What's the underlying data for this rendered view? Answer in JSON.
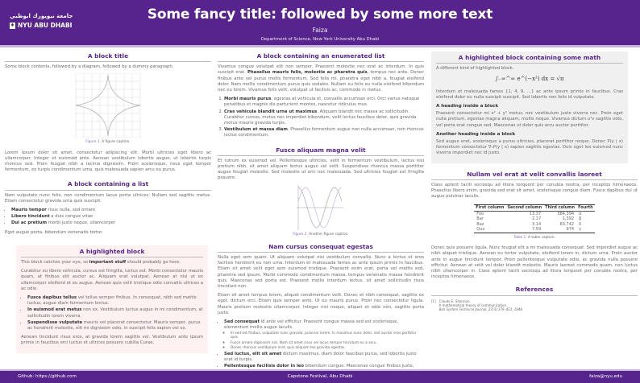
{
  "header": {
    "logo_arabic": "جامعة نيويورك ابوظبي",
    "logo_text": "NYU ABU DHABI",
    "title": "Some fancy title: followed by some more text",
    "author": "Faiza",
    "affiliation": "Department of Science, New York University Abu Dhabi"
  },
  "col1": {
    "block1": {
      "title": "A block title",
      "intro": "Some block contents, followed by a diagram, followed by a dummy paragraph.",
      "caption_label": "Figure 1.",
      "caption": "A figure caption.",
      "para": "Lorem ipsum dolor sit amet, consectetur adipiscing elit. Morbi ultricies eget libero ac ullamcorper. Integer et euismod ante. Aenean vestibulum lobortis augue, ut lobortis turpis rhoncus sed. Proin feugiat nibh a lacinia dignissim. Proin scelerisque, risus eget tempor fermentum, ex turpis condimentum urna, quis malesuada sapien arcu eu purus."
    },
    "block2": {
      "title": "A block containing a list",
      "intro": "Nam vulputate nunc felis, non condimentum lacus porta ultrices. Nullam sed sagittis metus. Etiam consectetur gravida urna quis suscipit.",
      "items": [
        {
          "bold": "Mauris tempor",
          "text": " risus nulla, sed ornare"
        },
        {
          "bold": "Libero tincidunt",
          "text": " a duis congue vitae"
        },
        {
          "bold": "Dui ac pretium",
          "text": " morbi justo neque, ullamcorper"
        }
      ],
      "outro": "Eget augue porta, bibendum venenatis tortor."
    },
    "block3": {
      "title": "A highlighted block",
      "p1_pre": "This block catches your eye, so ",
      "p1_bold": "important stuff",
      "p1_post": " should probably go here.",
      "p2": "Curabitur eu libero vehicula, cursus est fringilla, luctus est. Morbi consectetur mauris quam, at finibus elit auctor ac. Aliquam erat volutpat. Aenean at nisl ut ex ullamcorper eleifend et eu augue. Aenean quis velit tristique odio convallis ultrices a ac odio.",
      "items": [
        {
          "bold": "Fusce dapibus tellus",
          "text": " vel tellus semper finibus. In consequat, nibh sed mattis luctus, augue diam fermentum lectus."
        },
        {
          "bold": "In euismod erat metus",
          "text": " non ex. Vestibulum luctus augue in mi condimentum, at sollicitudin lorem viverra."
        },
        {
          "bold": "Suspendisse vulputate",
          "text": " mauris vel placerat consectetur. Mauris semper, purus ac hendrerit molestie, elit mi dignissim odio, in suscipit felis sapien vel ex."
        }
      ],
      "p3": "Aenean tincidunt risus eros, at gravida lorem sagittis vel. Vestibulum ante ipsum primis in faucibus orci luctus et ultrices posuere cubilia Curae."
    }
  },
  "col2": {
    "block1": {
      "title": "A block containing an enumerated list",
      "p_pre": "Vivamus congue volutpat elit non semper. Praesent molestie nec erat ac interdum. In quis suscipit erat. ",
      "p_bold": "Phasellus mauris felis, molestie ac pharetra quis",
      "p_post": ", tempus nec ante. Donec finibus ante vel purus mollis fermentum. Sed felis mi, pharetra eget nibh a, feugiat eleifend dolor. Nam mollis condimentum purus quis sodales. Nullam eu felis eu nulla eleifend bibendum nec eu lorem. Vivamus felis velit, volutpat ut facilisis ac, commodo in metus.",
      "items": [
        {
          "bold": "Morbi mauris purus",
          "text": ", egestas at vehicula et, convallis accumsan orci. Orci varius natoque penatibus et magnis dis parturient montes, nascetur ridiculus mus."
        },
        {
          "bold": "Cras vehicula blandit urna ut maximus",
          "text": ". Aliquam blandit nec massa ac sollicitudin. Curabitur cursus, metus nec imperdiet bibendum, velit lectus faucibus dolor, quis gravida metus mauris gravida turpis."
        },
        {
          "bold": "Vestibulum et massa diam",
          "text": ". Phasellus fermentum augue non nulla accumsan, non rhoncus lectus condimentum."
        }
      ]
    },
    "block2": {
      "title": "Fusce aliquam magna velit",
      "para": "Et rutrum ex euismod vel. Pellentesque ultricies, velit in fermentum vestibulum, lectus nisi pretium nibh, sit amet aliquam lectus augue vel velit. Suspendisse rhoncus massa porttitor augue feugiat molestie. Sed molestie ut orci nec malesuada. Sed ultricies feugiat est fringilla posuere.",
      "caption_label": "Figure 2.",
      "caption": "Another figure caption."
    },
    "block3": {
      "title": "Nam cursus consequat egestas",
      "p1": "Nulla eget sem quam. Ut aliquam volutpat nisi vestibulum convallis. Nunc a lectus et eros facilisis hendrerit eu non urna. Interdum et malesuada fames ac ante ipsum primis in faucibus. Etiam sit amet velit eget sem euismod tristique. Praesent enim erat, porta vel mattis sed, pharetra sed ipsum. Morbi commodo condimentum massa, tempus venenatis massa hendrerit quis. Maecenas sed porta est. Praesent mollis interdum lectus, sit amet sollicitudin risus tincidunt non.",
      "p2": "Etiam sit amet tempus lorem, aliquet condimentum velit. Donec et nibh consequat, sagittis ex eget, dictum orci. Etiam quis semper ante. Ut eu mauris purus. Proin nec consectetur ligula. Mauris pretium molestie ullamcorper. Integer nisi neque, aliquet et odio non, sagittis porta justo.",
      "items": [
        {
          "bold": "Sed consequat",
          "text": " id ante vel efficitur. Praesent congue massa sed est scelerisque, elementum mollis augue iaculis."
        },
        {
          "bold": "Sed luctus, elit sit amet",
          "text": " dictum maximus, diam dolor faucibus purus, sed lobortis justo erat id turpis."
        },
        {
          "bold": "Pellentesque facilisis dolor in leo",
          "text": " bibendum congue. Maecenas congue finibus justo, vitae eleifend urna facilisis at."
        }
      ],
      "subitems": [
        "In sed est finibus, vulputate nunc gravida, pulvinar lorem. In maximus nunc dolor, sed auctor eros porttitor quis.",
        "Fusce ornare dignissim nisi. Nam sit amet risus vel lacus tempor tincidunt eu a arcu.",
        "Donec rhoncus vestibulum erat, quis aliquam leo gravida egestas."
      ]
    }
  },
  "col3": {
    "block1": {
      "title": "A highlighted block containing some math",
      "intro": "A different kind of highlighted block.",
      "equation": "∫₋∞^∞ e^(−x²) dx = √π",
      "p1": "Interdum et malesuada fames {1, 4, 9, …} ac ante ipsum primis in faucibus. Cras eleifend dolor eu nulla suscipit suscipit. Sed lobortis non felis id vulputate.",
      "h1": "A heading inside a block",
      "p2": "Praesent consectetur mi x² + y² metus, nec vestibulum justo viverra nec. Proin eget nulla pretium, egestas magna aliquam, mollis neque. Vivamus dictum uᵀv sagittis odio, vel porta erat congue sed. Maecenas ut dolor quis arcu auctor porttitor.",
      "h2": "Another heading inside a block",
      "p3": "Sed augue erat, scelerisque a purus ultricies, placerat porttitor neque. Donec P(y | x) fermentum consectetur ∇ₓP(y | x) sapien sagittis egestas. Duis eget leo euismod nunc viverra imperdiet nec id justo."
    },
    "block2": {
      "title": "Nullam vel erat at velit convallis laoreet",
      "p1": "Class aptent taciti sociosqu ad litora torquent per conubia nostra, per inceptos himenaeos. Phasellus libero enim, gravida sed erat sit amet, scelerisque congue diam. Fusce dapibus dui ut augue pulvinar iaculis.",
      "table": {
        "headers": [
          "First column",
          "Second column",
          "Third column",
          "Fourth"
        ],
        "rows": [
          [
            "Foo",
            "13.37",
            "384,394",
            "α"
          ],
          [
            "Bar",
            "2.17",
            "1,392",
            "β"
          ],
          [
            "Baz",
            "3.14",
            "83,742",
            "δ"
          ],
          [
            "Qux",
            "7.59",
            "974",
            "γ"
          ]
        ]
      },
      "caption_label": "Table 1.",
      "caption": "A table caption.",
      "p2": "Donec quis posuere ligula. Nunc feugiat elit a mi malesuada consequat. Sed imperdiet augue ac nibh aliquet tristique. Aenean eu tortor vulputate, eleifend lorem in, dictum urna. Proin auctor ante in augue tincidunt tempor. Proin pellentesque vulputate odio, ac gravida nulla posuere efficitur. Aenean at velit vel dolor blandit molestie. Mauris laoreet commodo quam, non luctus nibh ullamcorper in. Class aptent taciti sociosqu ad litora torquent per conubia nostra, per inceptos himenaeos."
    },
    "refs": {
      "title": "References",
      "items": [
        {
          "num": "[1]",
          "author": "Claude E. Shannon.",
          "title": "A mathematical theory of communication.",
          "venue": "Bell System Technical Journal, 27(3):379–423, 1948."
        }
      ]
    }
  },
  "footer": {
    "left": "Github: https://github.com",
    "center": "Capstone Festival, Abu Dhabi",
    "right": "faiza@nyu.edu"
  },
  "colors": {
    "brand": "#57238c",
    "highlight_pink": "#fdf1f1",
    "highlight_gray": "#f0f0f0"
  }
}
